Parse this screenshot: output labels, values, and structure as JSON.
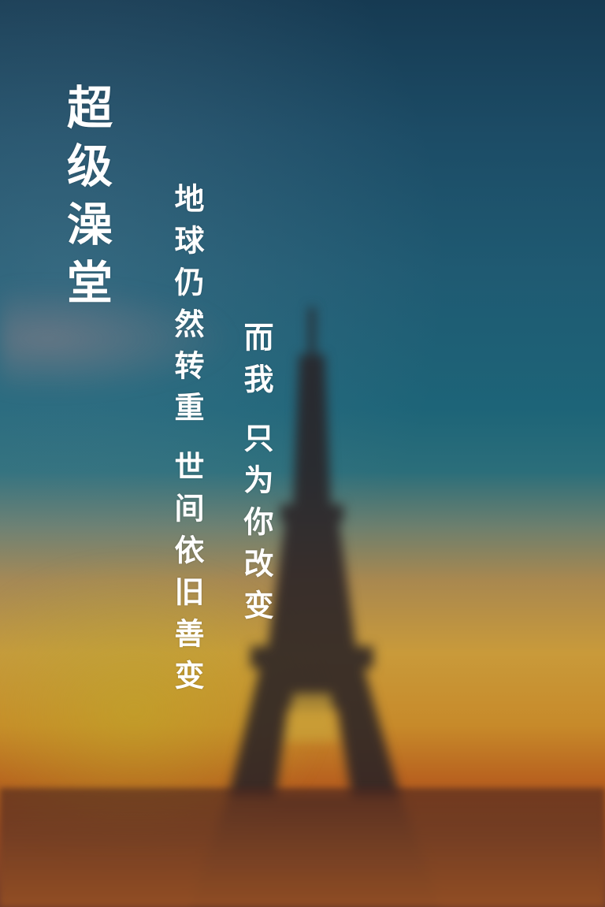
{
  "poster": {
    "title": "超级澡堂",
    "verse_a_part1": "地球仍然转重",
    "verse_a_part2": "世间依旧善变",
    "verse_b_part1": "而我",
    "verse_b_part2": "只为你改变"
  }
}
